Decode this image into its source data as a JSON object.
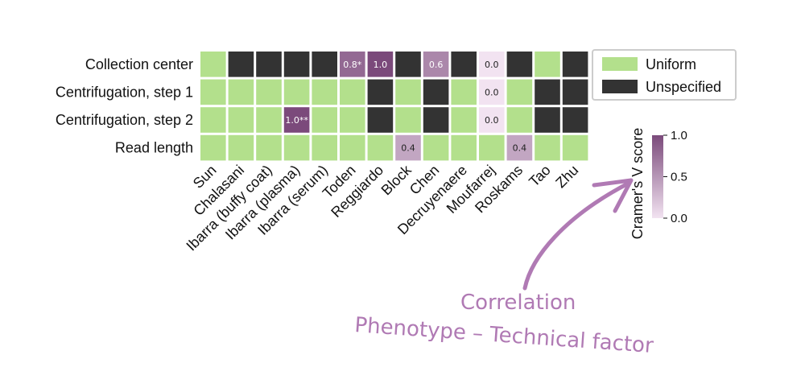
{
  "colors": {
    "uniform": "#b3e08c",
    "unspecified": "#333333",
    "score_low": "#f2e3f1",
    "score_high": "#7b4a7b",
    "annotation": "#b07ab4"
  },
  "chart_data": {
    "type": "heatmap",
    "rows": [
      "Collection center",
      "Centrifugation, step 1",
      "Centrifugation, step 2",
      "Read length"
    ],
    "columns": [
      "Sun",
      "Chalasani",
      "Ibarra (buffy coat)",
      "Ibarra (plasma)",
      "Ibarra (serum)",
      "Toden",
      "Reggiardo",
      "Block",
      "Chen",
      "Decruyenaere",
      "Moufarrej",
      "Roskams",
      "Tao",
      "Zhu"
    ],
    "cells": [
      [
        "U",
        "X",
        "X",
        "X",
        "X",
        0.8,
        1.0,
        "X",
        0.6,
        "X",
        0.0,
        "X",
        "U",
        "X"
      ],
      [
        "U",
        "U",
        "U",
        "U",
        "U",
        "U",
        "X",
        "U",
        "X",
        "U",
        0.0,
        "U",
        "X",
        "X"
      ],
      [
        "U",
        "U",
        "U",
        1.0,
        "U",
        "U",
        "X",
        "U",
        "X",
        "U",
        0.0,
        "U",
        "X",
        "X"
      ],
      [
        "U",
        "U",
        "U",
        "U",
        "U",
        "U",
        "U",
        0.4,
        "U",
        "U",
        "U",
        0.4,
        "U",
        "U"
      ]
    ],
    "cell_labels": [
      [
        "",
        "",
        "",
        "",
        "",
        "0.8*",
        "1.0",
        "",
        "0.6",
        "",
        "0.0",
        "",
        "",
        ""
      ],
      [
        "",
        "",
        "",
        "",
        "",
        "",
        "",
        "",
        "",
        "",
        "0.0",
        "",
        "",
        ""
      ],
      [
        "",
        "",
        "",
        "1.0**",
        "",
        "",
        "",
        "",
        "",
        "",
        "0.0",
        "",
        "",
        ""
      ],
      [
        "",
        "",
        "",
        "",
        "",
        "",
        "",
        "0.4",
        "",
        "",
        "",
        "0.4",
        "",
        ""
      ]
    ],
    "legend": {
      "placement": "right",
      "entries": [
        {
          "key": "U",
          "label": "Uniform"
        },
        {
          "key": "X",
          "label": "Unspecified"
        }
      ]
    },
    "colorbar": {
      "label": "Cramer's V score",
      "range": [
        0.0,
        1.0
      ],
      "ticks": [
        {
          "value": 0.0,
          "label": "0.0"
        },
        {
          "value": 0.5,
          "label": "0.5"
        },
        {
          "value": 1.0,
          "label": "1.0"
        }
      ]
    }
  },
  "annotation": {
    "line1": "Correlation",
    "line2": "Phenotype – Technical factor"
  }
}
